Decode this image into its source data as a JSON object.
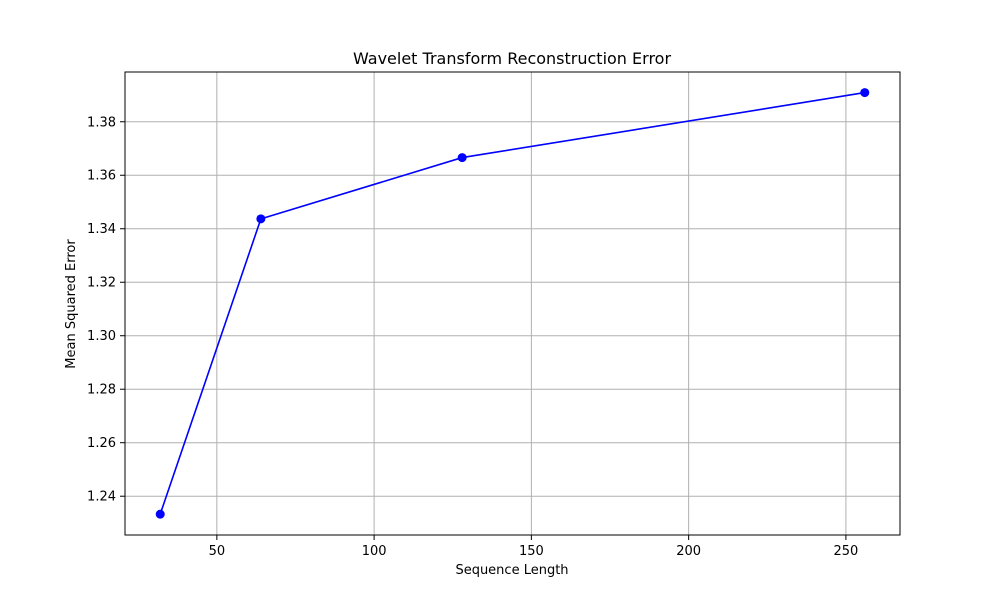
{
  "chart_data": {
    "type": "line",
    "title": "Wavelet Transform Reconstruction Error",
    "xlabel": "Sequence Length",
    "ylabel": "Mean Squared Error",
    "x": [
      32,
      64,
      128,
      256
    ],
    "series": [
      {
        "values": [
          1.2333,
          1.3437,
          1.3666,
          1.3909
        ],
        "color": "#0000ff",
        "marker": "circle"
      }
    ],
    "xlim": [
      20.8,
      267.2
    ],
    "ylim": [
      1.2255,
      1.3986
    ],
    "xticks": [
      50,
      100,
      150,
      200,
      250
    ],
    "xtick_labels": [
      "50",
      "100",
      "150",
      "200",
      "250"
    ],
    "yticks": [
      1.24,
      1.26,
      1.28,
      1.3,
      1.32,
      1.34,
      1.36,
      1.38
    ],
    "ytick_labels": [
      "1.24",
      "1.26",
      "1.28",
      "1.30",
      "1.32",
      "1.34",
      "1.36",
      "1.38"
    ],
    "grid": true
  }
}
